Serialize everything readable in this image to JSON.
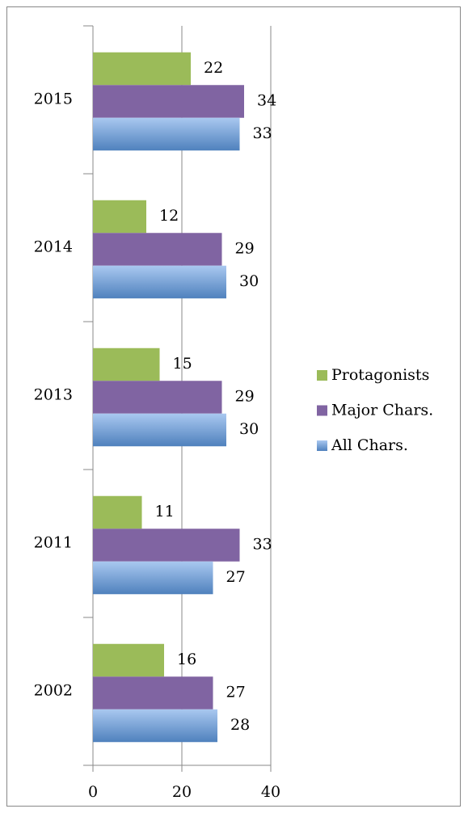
{
  "chart_data": {
    "type": "bar",
    "orientation": "horizontal",
    "categories": [
      "2015",
      "2014",
      "2013",
      "2011",
      "2002"
    ],
    "series": [
      {
        "name": "Protagonists",
        "color": "#9bbb59",
        "values": [
          22,
          12,
          15,
          11,
          16
        ]
      },
      {
        "name": "Major Chars.",
        "color": "#8064a2",
        "values": [
          34,
          29,
          29,
          33,
          27
        ]
      },
      {
        "name": "All Chars.",
        "color": "#4f81bd",
        "values": [
          33,
          30,
          30,
          27,
          28
        ]
      }
    ],
    "xlim": [
      0,
      40
    ],
    "xticks": [
      0,
      20,
      40
    ],
    "grid": true,
    "legend": "right"
  }
}
